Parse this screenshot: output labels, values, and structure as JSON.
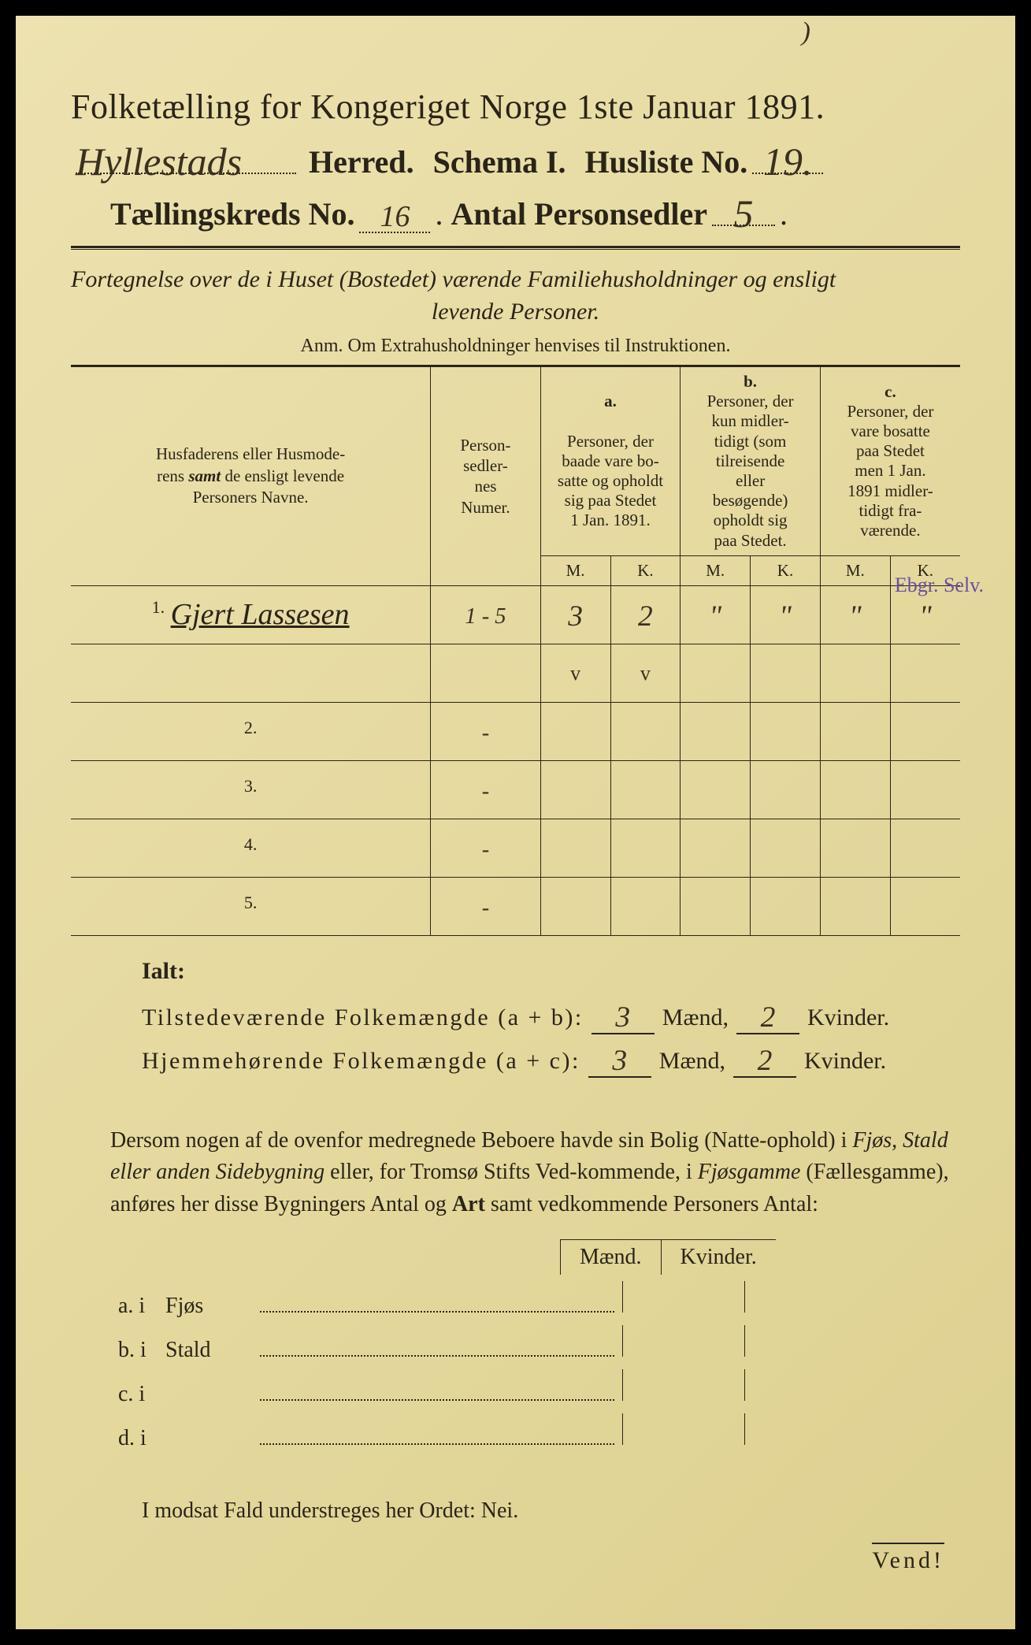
{
  "header": {
    "title": "Folketælling for Kongeriget Norge 1ste Januar 1891.",
    "herred_value": "Hyllestads",
    "herred_label": "Herred.",
    "schema_label": "Schema I.",
    "husliste_label": "Husliste No.",
    "husliste_value": "19.",
    "taellingskreds_label": "Tællingskreds No.",
    "taellingskreds_value": "16",
    "antal_personsedler_label": "Antal Personsedler",
    "antal_personsedler_value": "5"
  },
  "fortegnelse": {
    "line1": "Fortegnelse over de i Huset (Bostedet) værende Familiehusholdninger og ensligt",
    "line2": "levende Personer.",
    "anm": "Anm.  Om Extrahusholdninger henvises til Instruktionen."
  },
  "table": {
    "col_names_1": "Husfaderens eller Husmode-",
    "col_names_2": "rens ",
    "col_names_samt": "samt",
    "col_names_3": " de ensligt levende",
    "col_names_4": "Personers Navne.",
    "col_num_1": "Person-",
    "col_num_2": "sedler-",
    "col_num_3": "nes",
    "col_num_4": "Numer.",
    "col_a_head": "a.",
    "col_a_1": "Personer, der",
    "col_a_2": "baade vare bo-",
    "col_a_3": "satte og opholdt",
    "col_a_4": "sig paa Stedet",
    "col_a_5": "1 Jan. 1891.",
    "col_b_head": "b.",
    "col_b_1": "Personer, der",
    "col_b_2": "kun midler-",
    "col_b_3": "tidigt (som",
    "col_b_4": "tilreisende",
    "col_b_5": "eller",
    "col_b_6": "besøgende)",
    "col_b_7": "opholdt sig",
    "col_b_8": "paa Stedet.",
    "col_c_head": "c.",
    "col_c_1": "Personer, der",
    "col_c_2": "vare bosatte",
    "col_c_3": "paa Stedet",
    "col_c_4": "men 1 Jan.",
    "col_c_5": "1891 midler-",
    "col_c_6": "tidigt fra-",
    "col_c_7": "værende.",
    "m": "M.",
    "k": "K.",
    "rows": [
      {
        "num": "1.",
        "name": "Gjert Lassesen",
        "person_num": "1 - 5",
        "a_m": "3",
        "a_k": "2",
        "b_m": "\"",
        "b_k": "\"",
        "c_m": "\"",
        "c_k": "\""
      },
      {
        "num": "2.",
        "name": "",
        "person_num": "-",
        "a_m": "",
        "a_k": "",
        "b_m": "",
        "b_k": "",
        "c_m": "",
        "c_k": ""
      },
      {
        "num": "3.",
        "name": "",
        "person_num": "-",
        "a_m": "",
        "a_k": "",
        "b_m": "",
        "b_k": "",
        "c_m": "",
        "c_k": ""
      },
      {
        "num": "4.",
        "name": "",
        "person_num": "-",
        "a_m": "",
        "a_k": "",
        "b_m": "",
        "b_k": "",
        "c_m": "",
        "c_k": ""
      },
      {
        "num": "5.",
        "name": "",
        "person_num": "-",
        "a_m": "",
        "a_k": "",
        "b_m": "",
        "b_k": "",
        "c_m": "",
        "c_k": ""
      }
    ],
    "checkmark": "v",
    "margin_note": "Ebgr. Selv."
  },
  "ialt": {
    "title": "Ialt:",
    "line1_label": "Tilstedeværende Folkemængde (a + b):",
    "line1_m": "3",
    "line1_k": "2",
    "line2_label": "Hjemmehørende Folkemængde (a + c):",
    "line2_m": "3",
    "line2_k": "2",
    "maend": "Mænd,",
    "kvinder": "Kvinder."
  },
  "paragraph": {
    "text1": "Dersom nogen af de ovenfor medregnede Beboere havde sin Bolig (Natte-ophold) i ",
    "it1": "Fjøs, Stald eller anden Sidebygning",
    "text2": " eller, for Tromsø Stifts Ved-kommende, i ",
    "it2": "Fjøsgamme",
    "text3": " (Fællesgamme), anføres her disse Bygningers Antal og ",
    "bold1": "Art",
    "text4": " samt vedkommende Personers Antal:"
  },
  "mk": {
    "m": "Mænd.",
    "k": "Kvinder."
  },
  "outbuildings": {
    "rows": [
      {
        "label": "a.  i",
        "type": "Fjøs"
      },
      {
        "label": "b.  i",
        "type": "Stald"
      },
      {
        "label": "c.  i",
        "type": ""
      },
      {
        "label": "d.  i",
        "type": ""
      }
    ]
  },
  "modsat": "I modsat Fald understreges her Ordet: Nei.",
  "vend": "Vend!",
  "paren": ")"
}
